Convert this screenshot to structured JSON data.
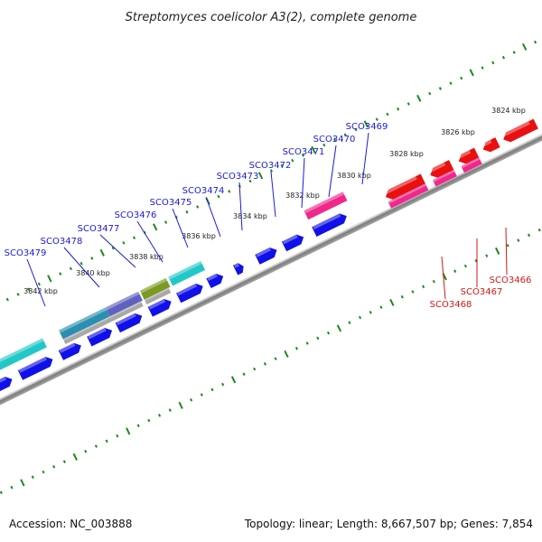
{
  "title": "Streptomyces coelicolor A3(2), complete genome",
  "footer": {
    "accession": "Accession: NC_003888",
    "summary": "Topology: linear; Length: 8,667,507 bp; Genes: 7,854"
  },
  "ruler_labels": [
    "3824 kbp",
    "3826 kbp",
    "3828 kbp",
    "3830 kbp",
    "3832 kbp",
    "3834 kbp",
    "3836 kbp",
    "3838 kbp",
    "3840 kbp",
    "3842 kbp"
  ],
  "gene_labels_forward": [
    "SCO3469",
    "SCO3470",
    "SCO3471",
    "SCO3472",
    "SCO3473",
    "SCO3474",
    "SCO3475",
    "SCO3476",
    "SCO3477",
    "SCO3478",
    "SCO3479"
  ],
  "gene_labels_reverse": [
    "SCO3466",
    "SCO3467",
    "SCO3468"
  ],
  "colors": {
    "blue_gene": "#1010e8",
    "cyan_feature": "#22c8c8",
    "pink_feature": "#f0288c",
    "red_gene": "#e81010",
    "olive_feature": "#7a9a22",
    "backbone": "#8a8a8a",
    "tick": "#1a8a1a",
    "blue_label": "#1a1adc",
    "red_label": "#d01818"
  }
}
